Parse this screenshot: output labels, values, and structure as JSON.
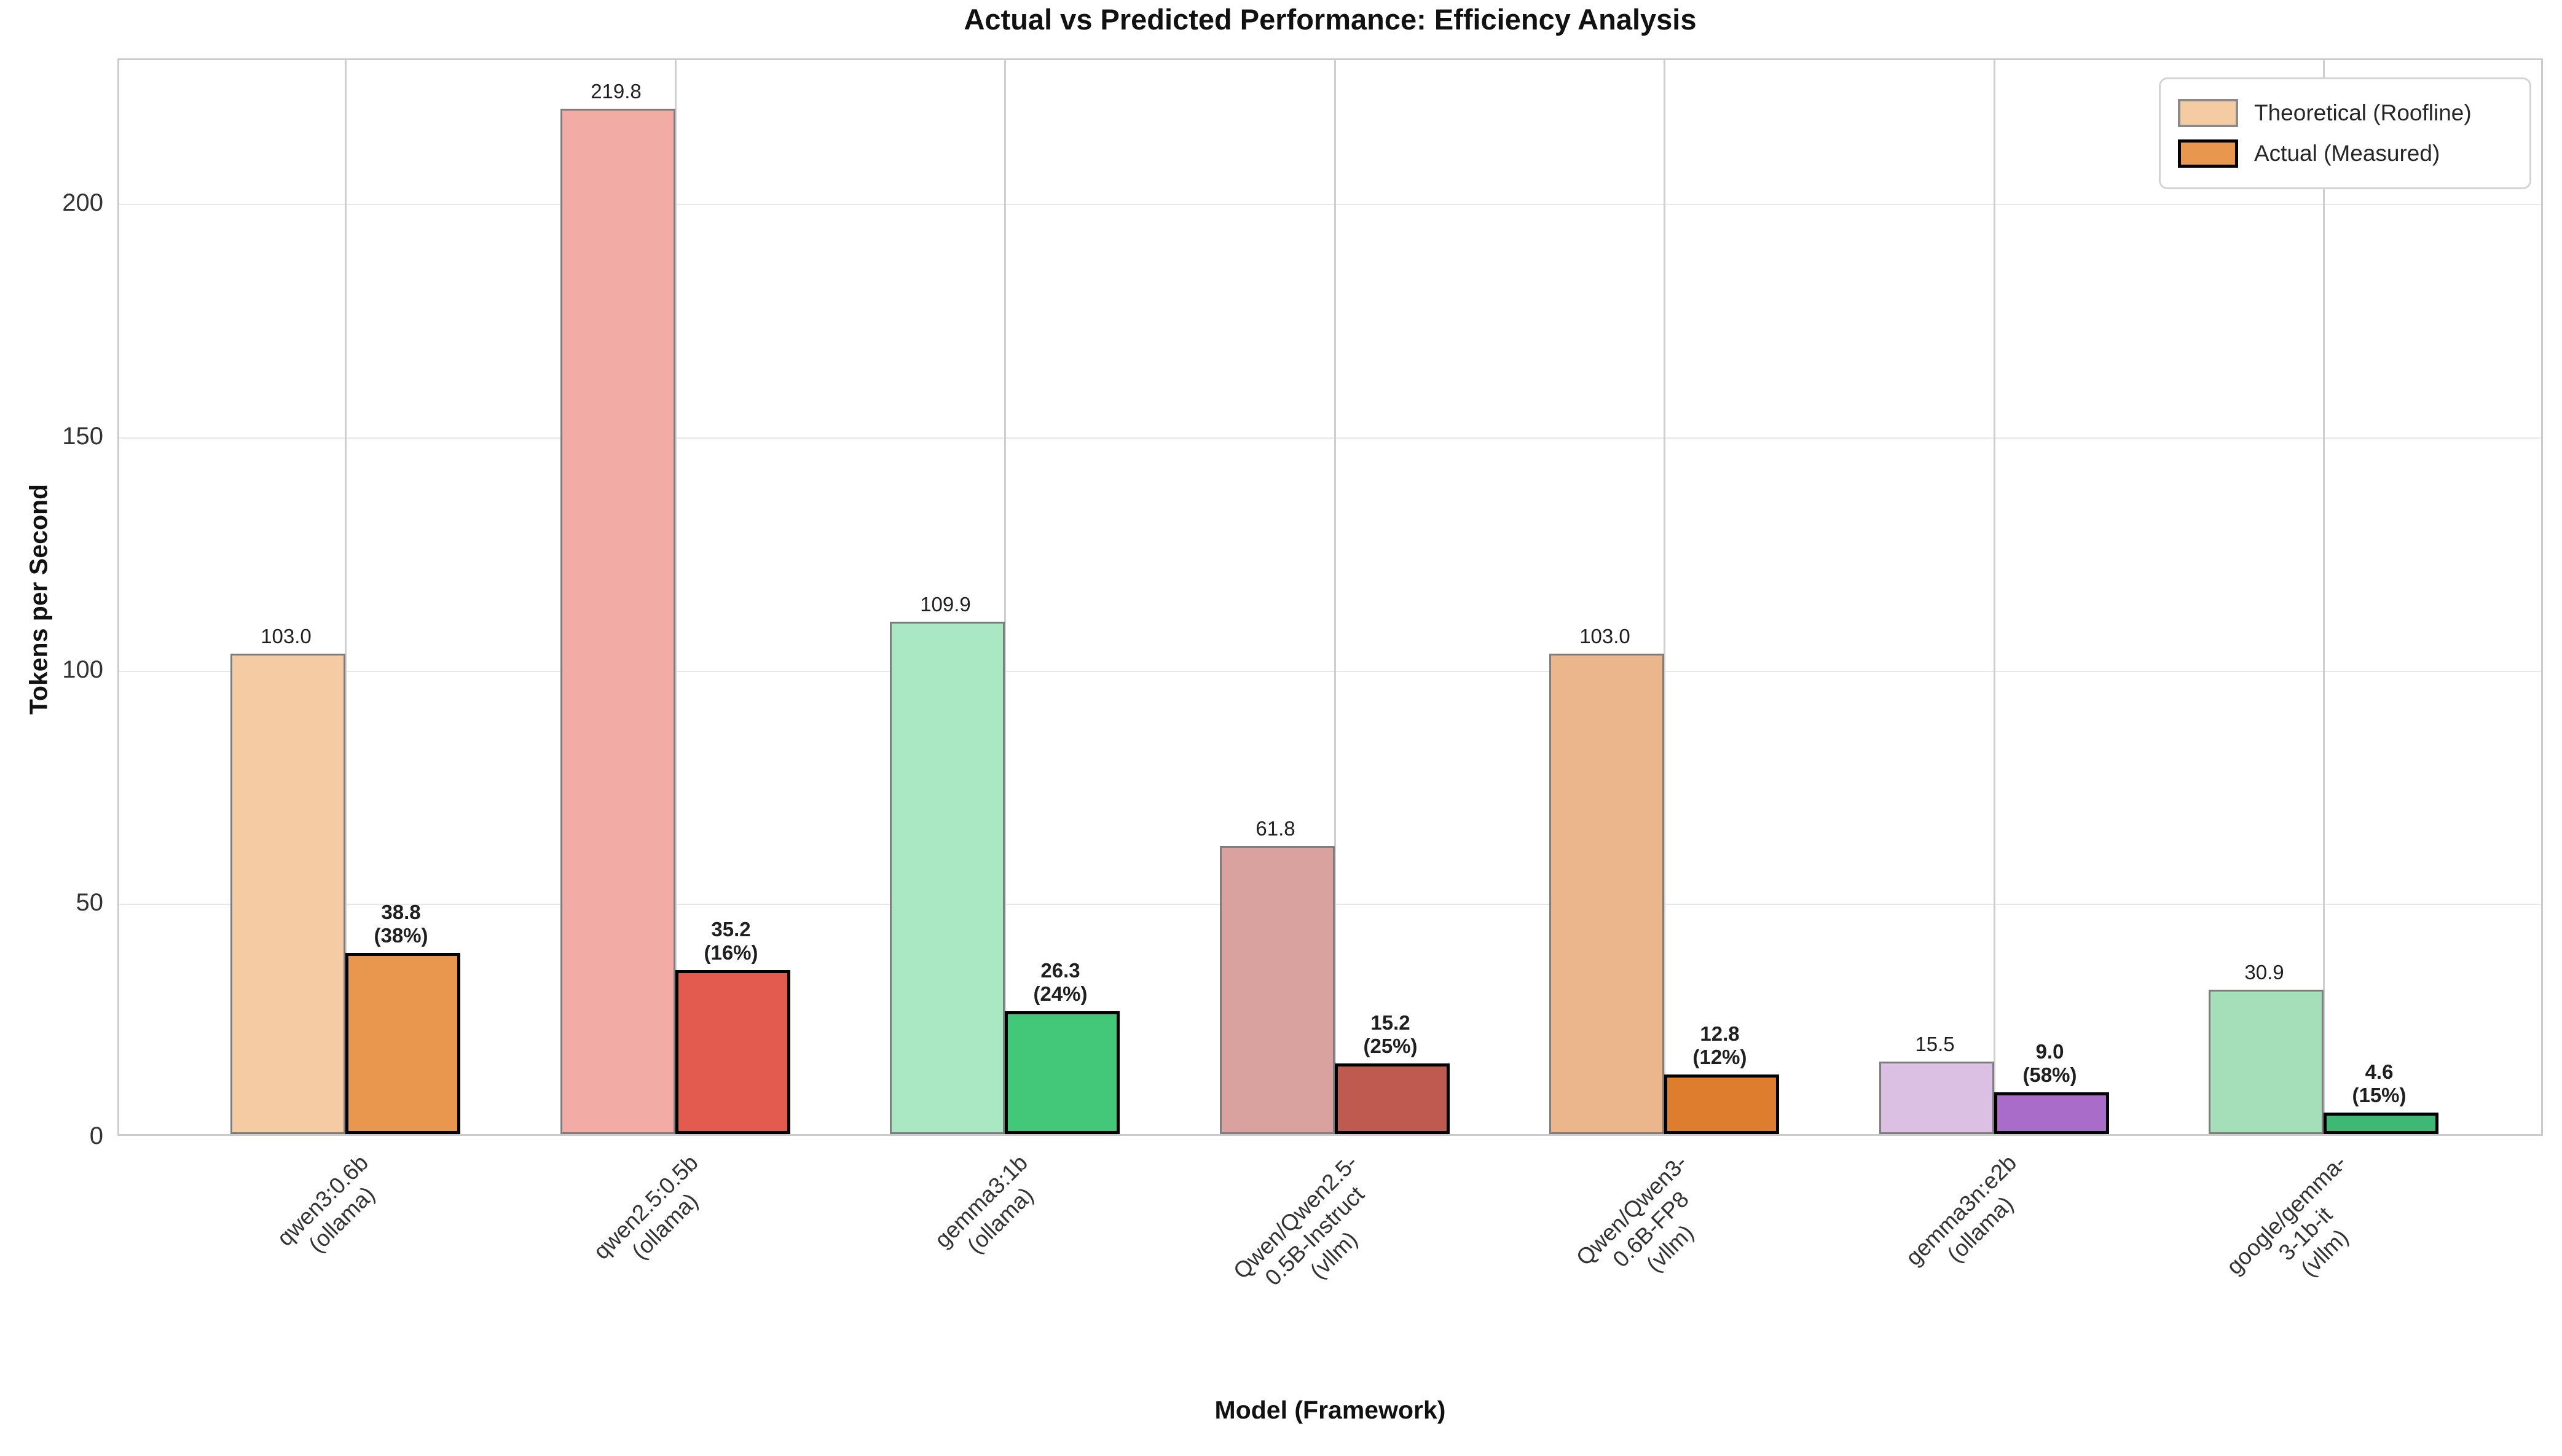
{
  "chart_data": {
    "type": "bar",
    "title": "Actual vs Predicted Performance: Efficiency Analysis",
    "xlabel": "Model (Framework)",
    "ylabel": "Tokens per Second",
    "ylim": [
      0,
      231
    ],
    "yticks": [
      0,
      50,
      100,
      150,
      200
    ],
    "grid": true,
    "legend": {
      "position": "upper right",
      "entries": [
        {
          "label": "Theoretical (Roofline)",
          "swatch_fill": "#F5CBA4",
          "swatch_border": "#8a8a8a"
        },
        {
          "label": "Actual (Measured)",
          "swatch_fill": "#E9964E",
          "swatch_border": "#000000"
        }
      ]
    },
    "series": [
      {
        "name": "Theoretical (Roofline)",
        "values": [
          103.0,
          219.8,
          109.9,
          61.8,
          103.0,
          15.5,
          30.9
        ]
      },
      {
        "name": "Actual (Measured)",
        "values": [
          38.8,
          35.2,
          26.3,
          15.2,
          12.8,
          9.0,
          4.6
        ]
      }
    ],
    "categories": [
      "qwen3:0.6b\n(ollama)",
      "qwen2.5:0.5b\n(ollama)",
      "gemma3:1b\n(ollama)",
      "Qwen/Qwen2.5-0.5B-Instruct\n(vllm)",
      "Qwen/Qwen3-0.6B-FP8\n(vllm)",
      "gemma3n:e2b\n(ollama)",
      "google/gemma-3-1b-it\n(vllm)"
    ],
    "groups": [
      {
        "model": "qwen3:0.6b",
        "framework": "(ollama)",
        "theoretical": 103.0,
        "actual": 38.8,
        "efficiency_pct": "(38%)",
        "theo_fill": "#F5CBA4",
        "act_fill": "#E9964E"
      },
      {
        "model": "qwen2.5:0.5b",
        "framework": "(ollama)",
        "theoretical": 219.8,
        "actual": 35.2,
        "efficiency_pct": "(16%)",
        "theo_fill": "#F2ACA5",
        "act_fill": "#E25B4E"
      },
      {
        "model": "gemma3:1b",
        "framework": "(ollama)",
        "theoretical": 109.9,
        "actual": 26.3,
        "efficiency_pct": "(24%)",
        "theo_fill": "#AAE8C4",
        "act_fill": "#42C878"
      },
      {
        "model": "Qwen/Qwen2.5-0.5B-Instruct",
        "framework": "(vllm)",
        "theoretical": 61.8,
        "actual": 15.2,
        "efficiency_pct": "(25%)",
        "theo_fill": "#DAA29E",
        "act_fill": "#BE5A4F"
      },
      {
        "model": "Qwen/Qwen3-0.6B-FP8",
        "framework": "(vllm)",
        "theoretical": 103.0,
        "actual": 12.8,
        "efficiency_pct": "(12%)",
        "theo_fill": "#EBB68C",
        "act_fill": "#DE7D2D"
      },
      {
        "model": "gemma3n:e2b",
        "framework": "(ollama)",
        "theoretical": 15.5,
        "actual": 9.0,
        "efficiency_pct": "(58%)",
        "theo_fill": "#DCC0E4",
        "act_fill": "#A96CC8"
      },
      {
        "model": "google/gemma-3-1b-it",
        "framework": "(vllm)",
        "theoretical": 30.9,
        "actual": 4.6,
        "efficiency_pct": "(15%)",
        "theo_fill": "#A5DFB9",
        "act_fill": "#3FB875"
      }
    ],
    "styles": {
      "theo_border": "#7d7d7d",
      "act_border": "#000000",
      "hgrid_color": "#e8e8e8",
      "vgrid_color": "#cfcfcf",
      "spine_color": "#cbcbcb"
    }
  }
}
